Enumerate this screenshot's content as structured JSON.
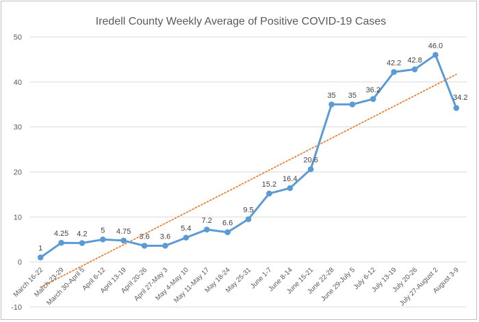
{
  "chart_data": {
    "type": "line",
    "title": "Iredell County Weekly Average of Positive COVID-19 Cases",
    "xlabel": "",
    "ylabel": "",
    "ylim": [
      -10,
      50
    ],
    "yticks": [
      -10,
      0,
      10,
      20,
      30,
      40,
      50
    ],
    "grid": true,
    "legend": "none",
    "categories": [
      "March 16-22",
      "March 23-29",
      "March 30-April 5",
      "April 6-12",
      "April 13-19",
      "April 20-26",
      "April 27-May 3",
      "May 4-May 10",
      "May 11-May 17",
      "May 18-24",
      "May 25-31",
      "June 1-7",
      "June 8-14",
      "June 15-21",
      "June 22-28",
      "June 29-July 5",
      "July 6-12",
      "July 13-19",
      "July 20-26",
      "July 27-August 2",
      "August 3-9"
    ],
    "series": [
      {
        "values": [
          1,
          4.25,
          4.2,
          5,
          4.75,
          3.6,
          3.6,
          5.4,
          7.2,
          6.6,
          9.5,
          15.2,
          16.4,
          20.6,
          35,
          35,
          36.2,
          42.2,
          42.8,
          46.0,
          34.2
        ],
        "labels": [
          "1",
          "4.25",
          "4.2",
          "5",
          "4.75",
          "3.6",
          "3.6",
          "5.4",
          "7.2",
          "6.6",
          "9.5",
          "15.2",
          "16.4",
          "20.6",
          "35",
          "35",
          "36.2",
          "42.2",
          "42.8",
          "46.0",
          "34.2"
        ],
        "color": "#5b9bd5"
      }
    ],
    "trendline": {
      "type": "linear",
      "color": "#ed7d31",
      "style": "dotted"
    },
    "gridline_color": "#d9d9d9"
  }
}
